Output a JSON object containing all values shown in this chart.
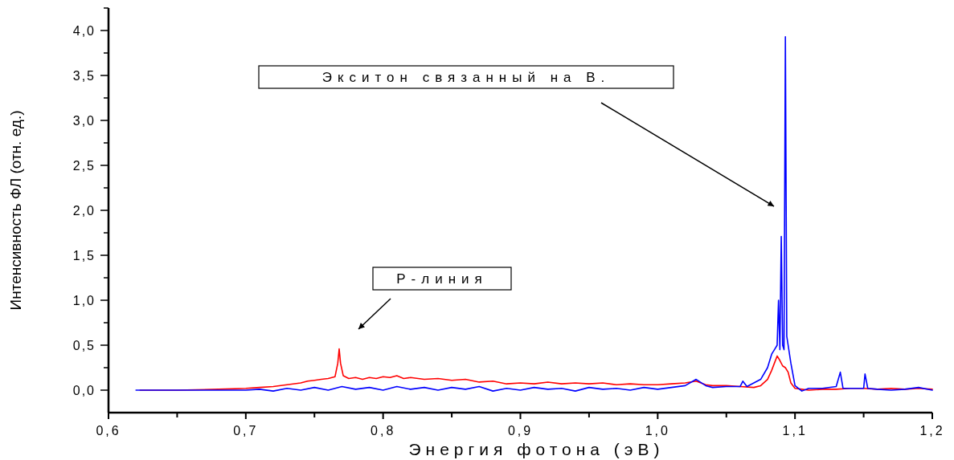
{
  "chart_data": {
    "type": "line",
    "xlabel": "Энергия фотона (эВ)",
    "ylabel": "Интенсивность ФЛ (отн. ед.)",
    "xlim": [
      0.6,
      1.2
    ],
    "ylim": [
      -0.25,
      4.25
    ],
    "xticks": [
      {
        "value": 0.6,
        "label": "0,6"
      },
      {
        "value": 0.65,
        "label": null
      },
      {
        "value": 0.7,
        "label": "0,7"
      },
      {
        "value": 0.75,
        "label": null
      },
      {
        "value": 0.8,
        "label": "0,8"
      },
      {
        "value": 0.85,
        "label": null
      },
      {
        "value": 0.9,
        "label": "0,9"
      },
      {
        "value": 0.95,
        "label": null
      },
      {
        "value": 1.0,
        "label": "1,0"
      },
      {
        "value": 1.05,
        "label": null
      },
      {
        "value": 1.1,
        "label": "1,1"
      },
      {
        "value": 1.15,
        "label": null
      },
      {
        "value": 1.2,
        "label": "1,2"
      }
    ],
    "yticks": [
      {
        "value": 0,
        "label": "0,0"
      },
      {
        "value": 0.25,
        "label": null
      },
      {
        "value": 0.5,
        "label": "0,5"
      },
      {
        "value": 0.75,
        "label": null
      },
      {
        "value": 1.0,
        "label": "1,0"
      },
      {
        "value": 1.25,
        "label": null
      },
      {
        "value": 1.5,
        "label": "1,5"
      },
      {
        "value": 1.75,
        "label": null
      },
      {
        "value": 2.0,
        "label": "2,0"
      },
      {
        "value": 2.25,
        "label": null
      },
      {
        "value": 2.5,
        "label": "2,5"
      },
      {
        "value": 2.75,
        "label": null
      },
      {
        "value": 3.0,
        "label": "3,0"
      },
      {
        "value": 3.25,
        "label": null
      },
      {
        "value": 3.5,
        "label": "3,5"
      },
      {
        "value": 3.75,
        "label": null
      },
      {
        "value": 4.0,
        "label": "4,0"
      },
      {
        "value": 4.25,
        "label": null
      }
    ],
    "grid": false,
    "marker": "none",
    "line_style": "solid",
    "series": [
      {
        "color": "#ff0000",
        "x": [
          0.623,
          0.65,
          0.68,
          0.7,
          0.71,
          0.72,
          0.73,
          0.74,
          0.745,
          0.75,
          0.755,
          0.76,
          0.765,
          0.767,
          0.768,
          0.769,
          0.771,
          0.775,
          0.78,
          0.785,
          0.79,
          0.795,
          0.8,
          0.805,
          0.81,
          0.815,
          0.82,
          0.83,
          0.84,
          0.85,
          0.86,
          0.87,
          0.88,
          0.89,
          0.9,
          0.91,
          0.92,
          0.93,
          0.94,
          0.95,
          0.96,
          0.97,
          0.98,
          0.99,
          1.0,
          1.01,
          1.02,
          1.028,
          1.035,
          1.04,
          1.05,
          1.06,
          1.07,
          1.075,
          1.08,
          1.083,
          1.085,
          1.087,
          1.089,
          1.091,
          1.093,
          1.095,
          1.097,
          1.1,
          1.105,
          1.11,
          1.12,
          1.13,
          1.14,
          1.15,
          1.16,
          1.17,
          1.18,
          1.19,
          1.2
        ],
        "values": [
          0,
          0,
          0.01,
          0.02,
          0.03,
          0.04,
          0.06,
          0.08,
          0.1,
          0.11,
          0.12,
          0.13,
          0.15,
          0.3,
          0.46,
          0.3,
          0.16,
          0.13,
          0.14,
          0.12,
          0.14,
          0.13,
          0.15,
          0.14,
          0.16,
          0.13,
          0.14,
          0.12,
          0.13,
          0.11,
          0.12,
          0.09,
          0.1,
          0.07,
          0.08,
          0.07,
          0.09,
          0.07,
          0.08,
          0.07,
          0.08,
          0.06,
          0.07,
          0.06,
          0.06,
          0.07,
          0.08,
          0.1,
          0.06,
          0.05,
          0.05,
          0.04,
          0.03,
          0.05,
          0.12,
          0.22,
          0.3,
          0.38,
          0.33,
          0.27,
          0.25,
          0.2,
          0.08,
          0.02,
          0.01,
          0,
          0.01,
          0.01,
          0.02,
          0.02,
          0.01,
          0.02,
          0.01,
          0.02,
          0.01
        ]
      },
      {
        "color": "#0000ff",
        "x": [
          0.62,
          0.65,
          0.68,
          0.7,
          0.71,
          0.72,
          0.73,
          0.74,
          0.75,
          0.76,
          0.77,
          0.78,
          0.79,
          0.8,
          0.81,
          0.82,
          0.83,
          0.84,
          0.85,
          0.86,
          0.87,
          0.88,
          0.89,
          0.9,
          0.91,
          0.92,
          0.93,
          0.94,
          0.95,
          0.96,
          0.97,
          0.98,
          0.99,
          1.0,
          1.01,
          1.02,
          1.028,
          1.035,
          1.04,
          1.05,
          1.06,
          1.062,
          1.065,
          1.07,
          1.075,
          1.08,
          1.083,
          1.085,
          1.087,
          1.088,
          1.089,
          1.09,
          1.091,
          1.092,
          1.093,
          1.094,
          1.095,
          1.097,
          1.1,
          1.105,
          1.11,
          1.12,
          1.13,
          1.133,
          1.135,
          1.14,
          1.15,
          1.151,
          1.153,
          1.16,
          1.17,
          1.18,
          1.19,
          1.2
        ],
        "values": [
          0,
          0,
          0,
          0,
          0.01,
          -0.01,
          0.02,
          0,
          0.03,
          0,
          0.04,
          0.01,
          0.03,
          0,
          0.04,
          0.01,
          0.03,
          0,
          0.03,
          0.01,
          0.04,
          -0.01,
          0.02,
          0,
          0.03,
          0.01,
          0.02,
          -0.01,
          0.03,
          0.01,
          0.02,
          0,
          0.03,
          0.01,
          0.03,
          0.05,
          0.12,
          0.05,
          0.03,
          0.04,
          0.04,
          0.1,
          0.04,
          0.08,
          0.12,
          0.25,
          0.4,
          0.45,
          0.5,
          1.0,
          0.45,
          1.71,
          0.5,
          0.45,
          3.93,
          0.6,
          0.5,
          0.3,
          0.05,
          -0.01,
          0.02,
          0.02,
          0.04,
          0.2,
          0.02,
          0.02,
          0.02,
          0.18,
          0.02,
          0.01,
          0,
          0.01,
          0.03,
          0
        ]
      }
    ],
    "annotations": [
      "Экситон связанный на В.",
      "Р-линия"
    ]
  }
}
